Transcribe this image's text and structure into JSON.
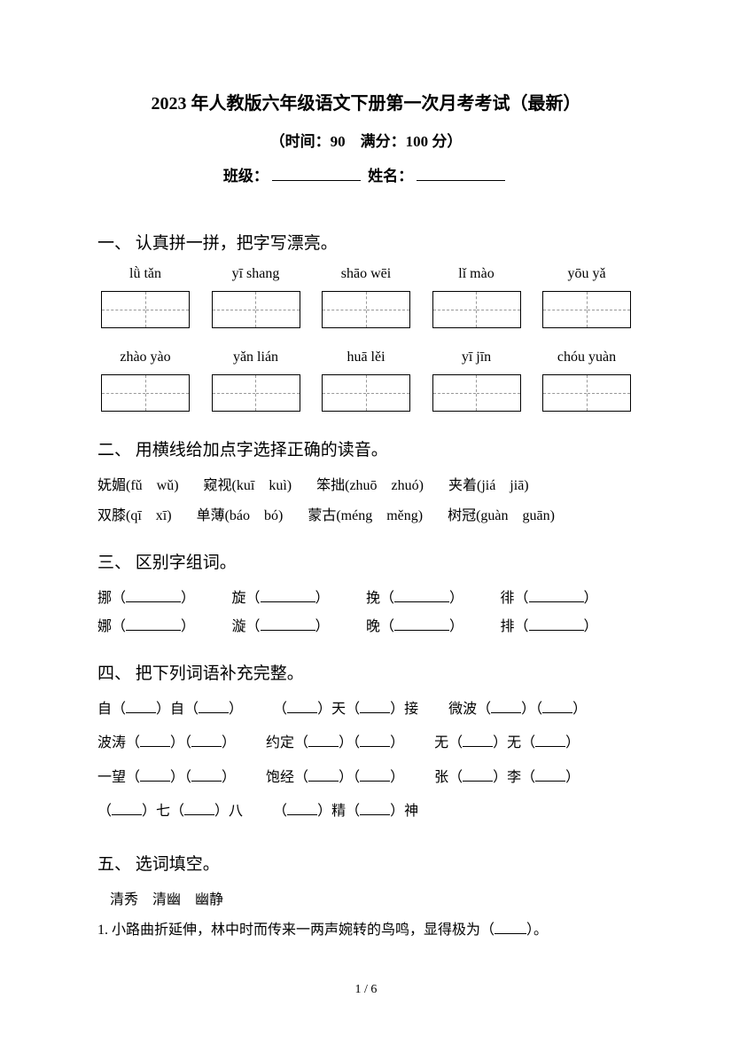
{
  "header": {
    "title": "2023 年人教版六年级语文下册第一次月考考试（最新）",
    "subtitle": "（时间：90　满分：100 分）",
    "class_label": "班级：",
    "name_label": "姓名："
  },
  "q1": {
    "title": "一、 认真拼一拼，把字写漂亮。",
    "row1": [
      "lǜ tǎn",
      "yī shang",
      "shāo wēi",
      "lǐ mào",
      "yōu yǎ"
    ],
    "row2": [
      "zhào yào",
      "yǎn lián",
      "huā lěi",
      "yī jīn",
      "chóu yuàn"
    ]
  },
  "q2": {
    "title": "二、 用横线给加点字选择正确的读音。",
    "row1": [
      "妩媚(fǔ　wǔ)",
      "窥视(kuī　kuì)",
      "笨拙(zhuō　zhuó)",
      "夹着(jiá　jiā)"
    ],
    "row2": [
      "双膝(qī　xī)",
      "单薄(báo　bó)",
      "蒙古(méng　měng)",
      "树冠(guàn　guān)"
    ]
  },
  "q3": {
    "title": "三、 区别字组词。",
    "row1": [
      "挪",
      "旋",
      "挽",
      "徘"
    ],
    "row2": [
      "娜",
      "漩",
      "晚",
      "排"
    ]
  },
  "q4": {
    "title": "四、 把下列词语补充完整。",
    "items": [
      [
        "自（",
        "）自（",
        "）"
      ],
      [
        "（",
        "）天（",
        "）接"
      ],
      [
        "微波（",
        "）（",
        "）"
      ],
      [
        "波涛（",
        "）（",
        "）"
      ],
      [
        "约定（",
        "）（",
        "）"
      ],
      [
        "无（",
        "）无（",
        "）"
      ],
      [
        "一望（",
        "）（",
        "）"
      ],
      [
        "饱经（",
        "）（",
        "）"
      ],
      [
        "张（",
        "）李（",
        "）"
      ],
      [
        "（",
        "）七（",
        "）八"
      ],
      [
        "（",
        "）精（",
        "）神"
      ]
    ]
  },
  "q5": {
    "title": "五、 选词填空。",
    "words": "清秀　清幽　幽静",
    "line1": "1. 小路曲折延伸，林中时而传来一两声婉转的鸟鸣，显得极为（",
    "line1_end": "）。"
  },
  "footer": {
    "page": "1 / 6"
  }
}
